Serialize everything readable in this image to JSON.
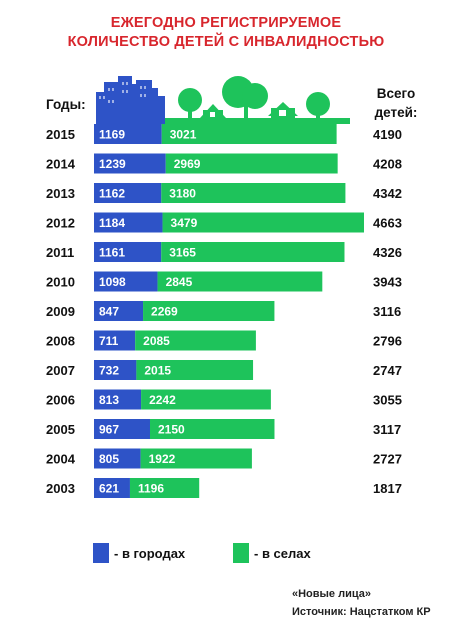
{
  "title_lines": [
    "ЕЖЕГОДНО РЕГИСТРИРУЕМОЕ",
    "КОЛИЧЕСТВО ДЕТЕЙ С ИНВАЛИДНОСТЬЮ"
  ],
  "years_label": "Годы:",
  "total_label_lines": [
    "Всего",
    "детей:"
  ],
  "legend": {
    "city": "- в городах",
    "village": "- в селах"
  },
  "source_lines": [
    "«Новые лица»",
    "Источник: Нацстатком КР"
  ],
  "colors": {
    "city": "#2e53c7",
    "village": "#1ec35b",
    "title": "#d8262d"
  },
  "chart_data": {
    "type": "bar",
    "stacked": true,
    "orientation": "horizontal",
    "categories": [
      "2015",
      "2014",
      "2013",
      "2012",
      "2011",
      "2010",
      "2009",
      "2008",
      "2007",
      "2006",
      "2005",
      "2004",
      "2003"
    ],
    "series": [
      {
        "name": "- в городах",
        "values": [
          1169,
          1239,
          1162,
          1184,
          1161,
          1098,
          847,
          711,
          732,
          813,
          967,
          805,
          621
        ]
      },
      {
        "name": "- в селах",
        "values": [
          3021,
          2969,
          3180,
          3479,
          3165,
          2845,
          2269,
          2085,
          2015,
          2242,
          2150,
          1922,
          1196
        ]
      }
    ],
    "totals": [
      4190,
      4208,
      4342,
      4663,
      4326,
      3943,
      3116,
      2796,
      2747,
      3055,
      3117,
      2727,
      1817
    ]
  }
}
